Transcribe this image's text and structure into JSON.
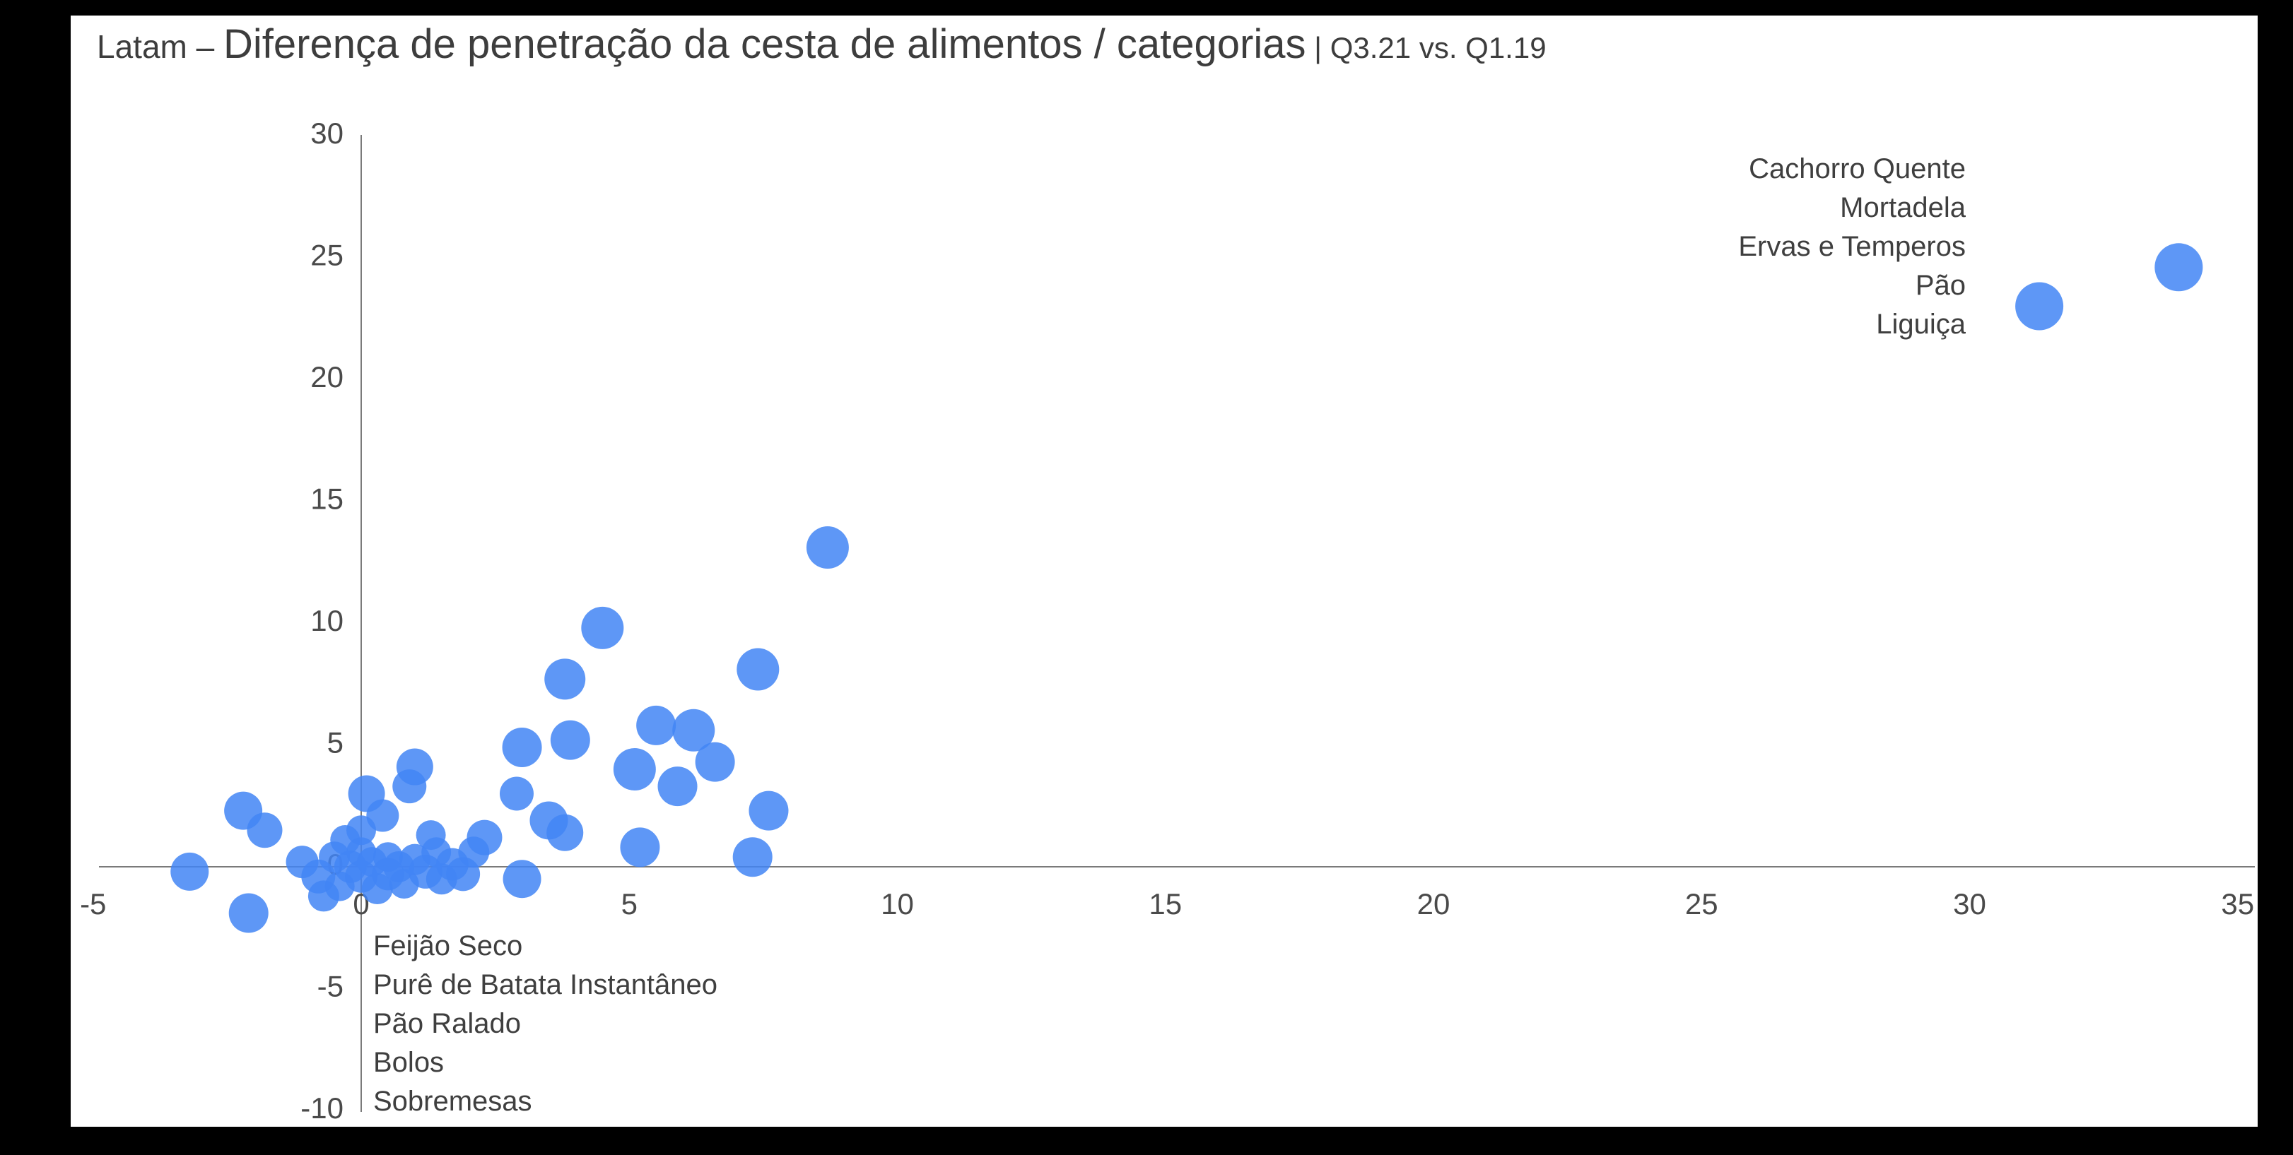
{
  "title": {
    "prefix": "Latam – ",
    "main": "Diferença de penetração da cesta de alimentos / categorias",
    "suffix": " | Q3.21 vs. Q1.19"
  },
  "colors": {
    "page_background": "#000000",
    "canvas_background": "#ffffff",
    "dot": "#4285F4",
    "dot_opacity": 0.85,
    "axis_line": "#7a7a7a",
    "tick_text": "#4a4a4a",
    "annotation_text": "#3f3f3f",
    "title_text": "#3d3d3d"
  },
  "chart_data": {
    "type": "scatter",
    "title": "Latam – Diferença de penetração da cesta de alimentos / categorias | Q3.21 vs. Q1.19",
    "xlabel": "",
    "ylabel": "",
    "xlim": [
      -5,
      35
    ],
    "ylim": [
      -10,
      30
    ],
    "x_ticks": [
      -5,
      0,
      5,
      10,
      15,
      20,
      25,
      30,
      35
    ],
    "y_ticks": [
      -10,
      -5,
      0,
      5,
      10,
      15,
      20,
      25,
      30
    ],
    "grid": false,
    "legend": "none",
    "annotations": {
      "top_right": {
        "lines": [
          "Cachorro Quente",
          "Mortadela",
          "Ervas e Temperos",
          "Pão",
          "Liguiça"
        ],
        "align": "right"
      },
      "bottom_left": {
        "lines": [
          "Feijão Seco",
          "Purê de Batata Instantâneo",
          "Pão Ralado",
          "Bolos",
          "Sobremesas"
        ],
        "align": "left"
      }
    },
    "points": [
      {
        "x": 31.3,
        "y": 23.0,
        "r": 34
      },
      {
        "x": 33.9,
        "y": 24.6,
        "r": 34
      },
      {
        "x": 8.7,
        "y": 13.1,
        "r": 30
      },
      {
        "x": 4.5,
        "y": 9.8,
        "r": 30
      },
      {
        "x": 7.4,
        "y": 8.1,
        "r": 30
      },
      {
        "x": 3.8,
        "y": 7.7,
        "r": 29
      },
      {
        "x": 5.5,
        "y": 5.8,
        "r": 28
      },
      {
        "x": 6.2,
        "y": 5.6,
        "r": 30
      },
      {
        "x": 3.9,
        "y": 5.2,
        "r": 28
      },
      {
        "x": 3.0,
        "y": 4.9,
        "r": 28
      },
      {
        "x": 5.1,
        "y": 4.0,
        "r": 30
      },
      {
        "x": 6.6,
        "y": 4.3,
        "r": 28
      },
      {
        "x": 5.9,
        "y": 3.3,
        "r": 28
      },
      {
        "x": 1.0,
        "y": 4.1,
        "r": 26
      },
      {
        "x": 0.9,
        "y": 3.3,
        "r": 24
      },
      {
        "x": 0.1,
        "y": 3.0,
        "r": 26
      },
      {
        "x": 7.6,
        "y": 2.3,
        "r": 28
      },
      {
        "x": 2.9,
        "y": 3.0,
        "r": 24
      },
      {
        "x": -2.2,
        "y": 2.3,
        "r": 27
      },
      {
        "x": -1.8,
        "y": 1.5,
        "r": 25
      },
      {
        "x": 0.4,
        "y": 2.1,
        "r": 23
      },
      {
        "x": 3.5,
        "y": 1.9,
        "r": 27
      },
      {
        "x": 3.8,
        "y": 1.4,
        "r": 26
      },
      {
        "x": 2.3,
        "y": 1.2,
        "r": 25
      },
      {
        "x": 5.2,
        "y": 0.8,
        "r": 28
      },
      {
        "x": 7.3,
        "y": 0.4,
        "r": 28
      },
      {
        "x": -3.2,
        "y": -0.2,
        "r": 27
      },
      {
        "x": -2.1,
        "y": -1.9,
        "r": 28
      },
      {
        "x": 3.0,
        "y": -0.5,
        "r": 27
      },
      {
        "x": -1.1,
        "y": 0.2,
        "r": 23
      },
      {
        "x": -0.8,
        "y": -0.4,
        "r": 24
      },
      {
        "x": -0.5,
        "y": 0.4,
        "r": 22
      },
      {
        "x": -0.4,
        "y": -0.8,
        "r": 21
      },
      {
        "x": -0.2,
        "y": 0.0,
        "r": 23
      },
      {
        "x": 0.0,
        "y": 0.6,
        "r": 21
      },
      {
        "x": 0.0,
        "y": -0.4,
        "r": 23
      },
      {
        "x": 0.2,
        "y": 0.2,
        "r": 21
      },
      {
        "x": 0.3,
        "y": -0.9,
        "r": 22
      },
      {
        "x": 0.5,
        "y": 0.4,
        "r": 21
      },
      {
        "x": 0.5,
        "y": -0.3,
        "r": 23
      },
      {
        "x": 0.7,
        "y": 0.0,
        "r": 22
      },
      {
        "x": 0.8,
        "y": -0.7,
        "r": 21
      },
      {
        "x": 1.0,
        "y": 0.3,
        "r": 22
      },
      {
        "x": 1.2,
        "y": -0.2,
        "r": 24
      },
      {
        "x": 1.4,
        "y": 0.6,
        "r": 21
      },
      {
        "x": 1.5,
        "y": -0.5,
        "r": 22
      },
      {
        "x": 1.7,
        "y": 0.1,
        "r": 23
      },
      {
        "x": 1.9,
        "y": -0.3,
        "r": 24
      },
      {
        "x": 2.1,
        "y": 0.6,
        "r": 22
      },
      {
        "x": -0.7,
        "y": -1.2,
        "r": 22
      },
      {
        "x": 0.0,
        "y": 1.5,
        "r": 21
      },
      {
        "x": -0.3,
        "y": 1.1,
        "r": 21
      },
      {
        "x": 1.3,
        "y": 1.3,
        "r": 21
      }
    ]
  }
}
